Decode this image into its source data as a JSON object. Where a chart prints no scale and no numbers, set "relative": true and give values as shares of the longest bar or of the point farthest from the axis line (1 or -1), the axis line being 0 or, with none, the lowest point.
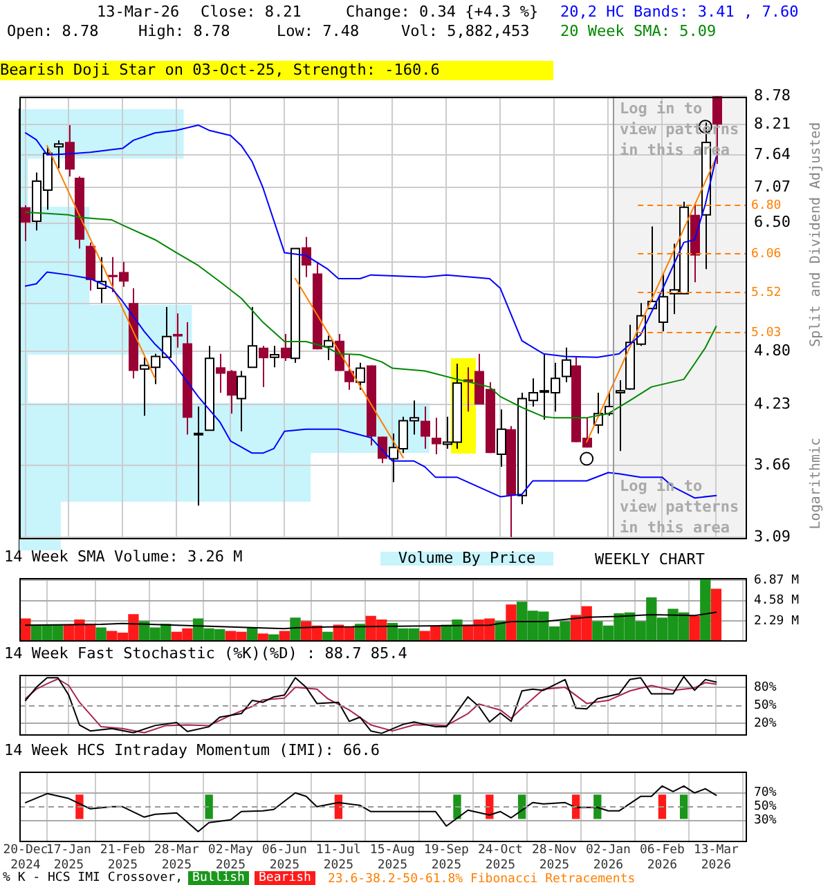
{
  "chart_data": [
    {
      "type": "candlestick",
      "title": "Bearish Doji Star on 03-Oct-25, Strength: -160.6",
      "ylabel": "Split and Dividend Adjusted",
      "annotations": [
        "13-Mar-26",
        "Close: 8.21",
        "Change: 0.34 {+4.3 %}",
        "Open: 8.78",
        "High: 8.78",
        "Low: 7.48",
        "Vol: 5,882,453",
        "20,2 HC Bands: 3.41 , 7.60",
        "20 Week SMA: 5.09",
        "Log in to view patterns in this area",
        "Log in to view patterns in this area",
        "Logarithmic",
        "23.6-38.2-50-61.8% Fibonacci Retracements"
      ],
      "x": [
        "2024-12-20",
        "2024-12-27",
        "2025-01-03",
        "2025-01-10",
        "2025-01-17",
        "2025-01-24",
        "2025-01-31",
        "2025-02-07",
        "2025-02-14",
        "2025-02-21",
        "2025-02-28",
        "2025-03-07",
        "2025-03-14",
        "2025-03-21",
        "2025-03-28",
        "2025-04-04",
        "2025-04-11",
        "2025-04-18",
        "2025-04-25",
        "2025-05-02",
        "2025-05-09",
        "2025-05-16",
        "2025-05-23",
        "2025-05-30",
        "2025-06-06",
        "2025-06-13",
        "2025-06-20",
        "2025-06-27",
        "2025-07-04",
        "2025-07-11",
        "2025-07-18",
        "2025-07-25",
        "2025-08-01",
        "2025-08-08",
        "2025-08-15",
        "2025-08-22",
        "2025-08-29",
        "2025-09-05",
        "2025-09-12",
        "2025-09-19",
        "2025-09-26",
        "2025-10-03",
        "2025-10-10",
        "2025-10-17",
        "2025-10-24",
        "2025-10-31",
        "2025-11-07",
        "2025-11-14",
        "2025-11-21",
        "2025-11-28",
        "2025-12-05",
        "2025-12-12",
        "2025-12-19",
        "2025-12-26",
        "2026-01-02",
        "2026-01-09",
        "2026-01-16",
        "2026-01-23",
        "2026-01-30",
        "2026-02-06",
        "2026-02-13",
        "2026-02-20",
        "2026-02-27",
        "2026-03-06",
        "2026-03-13"
      ],
      "ohlc": [
        [
          6.75,
          6.78,
          6.23,
          6.51
        ],
        [
          6.53,
          7.33,
          6.39,
          7.18
        ],
        [
          7.03,
          7.79,
          6.71,
          7.67
        ],
        [
          7.79,
          7.91,
          7.4,
          7.84
        ],
        [
          7.88,
          8.2,
          7.26,
          7.38
        ],
        [
          7.24,
          7.26,
          6.12,
          6.25
        ],
        [
          6.16,
          6.21,
          5.54,
          5.68
        ],
        [
          5.57,
          6.0,
          5.38,
          5.66
        ],
        [
          5.75,
          6.0,
          5.52,
          5.72
        ],
        [
          5.79,
          5.93,
          5.59,
          5.66
        ],
        [
          5.38,
          5.57,
          4.5,
          4.58
        ],
        [
          4.6,
          4.73,
          4.12,
          4.64
        ],
        [
          4.62,
          4.77,
          4.44,
          4.74
        ],
        [
          4.73,
          5.33,
          4.73,
          4.97
        ],
        [
          5.0,
          5.25,
          4.84,
          4.97
        ],
        [
          4.89,
          5.14,
          3.94,
          4.1
        ],
        [
          3.94,
          4.21,
          3.33,
          3.95
        ],
        [
          3.98,
          4.86,
          3.98,
          4.72
        ],
        [
          4.62,
          4.77,
          4.35,
          4.55
        ],
        [
          4.58,
          4.59,
          4.14,
          4.32
        ],
        [
          4.29,
          4.58,
          3.97,
          4.52
        ],
        [
          4.62,
          5.33,
          4.62,
          4.86
        ],
        [
          4.84,
          4.86,
          4.41,
          4.72
        ],
        [
          4.73,
          4.86,
          4.62,
          4.76
        ],
        [
          4.84,
          5.0,
          4.69,
          4.72
        ],
        [
          4.72,
          6.12,
          4.67,
          6.12
        ],
        [
          6.14,
          6.29,
          5.72,
          5.88
        ],
        [
          5.77,
          5.93,
          4.82,
          4.82
        ],
        [
          4.85,
          4.98,
          4.7,
          4.92
        ],
        [
          4.92,
          5.0,
          4.58,
          4.58
        ],
        [
          4.58,
          4.76,
          4.38,
          4.46
        ],
        [
          4.46,
          4.67,
          4.38,
          4.61
        ],
        [
          4.64,
          4.64,
          3.84,
          3.92
        ],
        [
          3.92,
          3.92,
          3.68,
          3.72
        ],
        [
          3.72,
          3.95,
          3.52,
          3.82
        ],
        [
          3.81,
          4.11,
          3.77,
          4.07
        ],
        [
          4.07,
          4.27,
          3.94,
          4.1
        ],
        [
          4.07,
          4.21,
          3.81,
          3.92
        ],
        [
          3.91,
          4.1,
          3.76,
          3.85
        ],
        [
          3.85,
          4.11,
          3.81,
          3.87
        ],
        [
          3.87,
          4.66,
          3.81,
          4.45
        ],
        [
          4.49,
          4.62,
          4.16,
          4.46
        ],
        [
          4.58,
          4.77,
          4.23,
          4.23
        ],
        [
          4.39,
          4.46,
          3.77,
          3.77
        ],
        [
          3.76,
          4.18,
          3.65,
          3.99
        ],
        [
          3.99,
          4.02,
          3.09,
          3.41
        ],
        [
          3.41,
          4.35,
          3.34,
          4.29
        ],
        [
          4.27,
          4.5,
          4.21,
          4.35
        ],
        [
          4.36,
          4.77,
          4.08,
          4.37
        ],
        [
          4.35,
          4.67,
          4.16,
          4.5
        ],
        [
          4.52,
          4.84,
          4.46,
          4.7
        ],
        [
          4.64,
          4.73,
          3.87,
          3.87
        ],
        [
          3.91,
          4.1,
          3.82,
          3.82
        ],
        [
          4.03,
          4.35,
          3.95,
          4.14
        ],
        [
          4.14,
          4.35,
          4.12,
          4.21
        ],
        [
          4.35,
          4.48,
          3.79,
          4.37
        ],
        [
          4.39,
          5.11,
          4.38,
          4.9
        ],
        [
          4.88,
          5.38,
          4.86,
          5.22
        ],
        [
          5.31,
          6.45,
          5.31,
          5.4
        ],
        [
          5.14,
          5.77,
          5.03,
          5.46
        ],
        [
          5.5,
          6.19,
          5.24,
          5.55
        ],
        [
          5.5,
          6.84,
          5.5,
          6.75
        ],
        [
          6.63,
          6.8,
          5.65,
          6.02
        ],
        [
          6.63,
          8.25,
          5.83,
          7.87
        ],
        [
          8.78,
          8.78,
          7.48,
          8.21
        ]
      ],
      "series": [
        {
          "type": "line",
          "color": "#0000ff",
          "x": [
            "2024-12-20",
            "2024-12-27",
            "2025-01-03",
            "2025-01-17",
            "2025-01-31",
            "2025-02-21",
            "2025-02-28",
            "2025-03-14",
            "2025-03-28",
            "2025-04-11",
            "2025-04-18",
            "2025-05-02",
            "2025-05-09",
            "2025-05-16",
            "2025-05-23",
            "2025-06-06",
            "2025-06-20",
            "2025-07-04",
            "2025-07-11",
            "2025-07-25",
            "2025-08-01",
            "2025-09-05",
            "2025-09-19",
            "2025-10-17",
            "2025-10-24",
            "2025-11-07",
            "2025-11-21",
            "2025-12-05",
            "2025-12-26",
            "2026-01-09",
            "2026-01-23",
            "2026-02-06",
            "2026-02-20",
            "2026-02-27",
            "2026-03-06",
            "2026-03-13"
          ],
          "values": [
            8.05,
            7.92,
            7.64,
            7.66,
            7.69,
            7.76,
            7.91,
            8.05,
            8.1,
            8.2,
            8.1,
            8.0,
            7.81,
            7.52,
            7.07,
            6.06,
            6.02,
            5.83,
            5.7,
            5.7,
            5.75,
            5.72,
            5.75,
            5.7,
            5.57,
            4.92,
            4.77,
            4.74,
            4.73,
            4.77,
            4.99,
            5.55,
            6.21,
            6.25,
            6.8,
            7.6
          ]
        },
        {
          "type": "line",
          "color": "#0000ff",
          "x": [
            "2024-12-20",
            "2024-12-27",
            "2025-01-03",
            "2025-01-17",
            "2025-01-31",
            "2025-02-14",
            "2025-02-21",
            "2025-03-07",
            "2025-03-14",
            "2025-03-21",
            "2025-03-28",
            "2025-04-11",
            "2025-04-25",
            "2025-05-02",
            "2025-05-16",
            "2025-05-23",
            "2025-05-30",
            "2025-06-06",
            "2025-06-20",
            "2025-07-11",
            "2025-08-01",
            "2025-08-15",
            "2025-08-29",
            "2025-09-05",
            "2025-09-12",
            "2025-09-26",
            "2025-10-24",
            "2025-11-07",
            "2025-11-14",
            "2025-12-19",
            "2026-01-02",
            "2026-01-09",
            "2026-01-23",
            "2026-02-06",
            "2026-02-13",
            "2026-02-27",
            "2026-03-13"
          ],
          "values": [
            5.6,
            5.63,
            5.79,
            5.75,
            5.7,
            5.57,
            5.4,
            5.03,
            4.88,
            4.76,
            4.62,
            4.31,
            4.06,
            3.88,
            3.77,
            3.77,
            3.81,
            3.97,
            3.99,
            3.99,
            3.91,
            3.7,
            3.7,
            3.65,
            3.56,
            3.56,
            3.4,
            3.42,
            3.53,
            3.53,
            3.6,
            3.59,
            3.56,
            3.56,
            3.48,
            3.39,
            3.41
          ]
        },
        {
          "type": "line",
          "color": "#008800",
          "x": [
            "2024-12-20",
            "2025-01-03",
            "2025-01-17",
            "2025-01-24",
            "2025-02-14",
            "2025-02-21",
            "2025-03-14",
            "2025-03-28",
            "2025-04-11",
            "2025-04-25",
            "2025-05-09",
            "2025-05-23",
            "2025-06-06",
            "2025-06-20",
            "2025-07-04",
            "2025-07-11",
            "2025-07-25",
            "2025-08-08",
            "2025-08-15",
            "2025-09-05",
            "2025-09-12",
            "2025-09-26",
            "2025-10-17",
            "2025-10-24",
            "2025-11-07",
            "2025-11-21",
            "2025-11-28",
            "2025-12-19",
            "2026-01-02",
            "2026-01-16",
            "2026-01-30",
            "2026-02-20",
            "2026-02-27",
            "2026-03-06",
            "2026-03-13"
          ],
          "values": [
            6.67,
            6.65,
            6.63,
            6.59,
            6.55,
            6.47,
            6.25,
            6.06,
            5.88,
            5.66,
            5.44,
            5.14,
            4.91,
            4.91,
            4.84,
            4.77,
            4.76,
            4.68,
            4.61,
            4.58,
            4.55,
            4.49,
            4.41,
            4.31,
            4.2,
            4.11,
            4.1,
            4.1,
            4.14,
            4.27,
            4.41,
            4.49,
            4.66,
            4.84,
            5.09
          ]
        },
        {
          "type": "line",
          "color": "#ff7f00",
          "x": [
            "2025-01-03",
            "2025-03-14"
          ],
          "values": [
            7.81,
            4.5
          ]
        },
        {
          "type": "line",
          "color": "#ff7f00",
          "x": [
            "2025-06-13",
            "2025-08-22"
          ],
          "values": [
            5.7,
            3.73
          ]
        },
        {
          "type": "line",
          "color": "#ff7f00",
          "x": [
            "2025-12-19",
            "2026-03-13"
          ],
          "values": [
            3.87,
            7.59
          ]
        },
        {
          "type": "scatter",
          "marker": "circle",
          "color": "#000000",
          "x": [
            "2025-12-19",
            "2026-03-06"
          ],
          "values": [
            3.72,
            8.17
          ]
        }
      ],
      "xlim": [
        "2024-12-16",
        "2026-04-02"
      ],
      "xticks": [
        {
          "value": "2024-12-20",
          "label": null
        },
        {
          "value": "2025-01-17",
          "label": null
        },
        {
          "value": "2025-02-21",
          "label": null
        },
        {
          "value": "2025-03-28",
          "label": null
        },
        {
          "value": "2025-05-02",
          "label": null
        },
        {
          "value": "2025-06-06",
          "label": null
        },
        {
          "value": "2025-07-11",
          "label": null
        },
        {
          "value": "2025-08-15",
          "label": null
        },
        {
          "value": "2025-09-19",
          "label": null
        },
        {
          "value": "2025-10-24",
          "label": null
        },
        {
          "value": "2025-11-28",
          "label": null
        },
        {
          "value": "2026-01-02",
          "label": null
        },
        {
          "value": "2026-02-06",
          "label": null
        },
        {
          "value": "2026-03-13",
          "label": null
        }
      ],
      "ylim": [
        3.09,
        8.78
      ],
      "yticks": [
        3.09,
        3.66,
        4.23,
        {
          "value": 4.8,
          "label": "4.80"
        },
        {
          "value": 5.37,
          "label": null
        },
        {
          "value": 5.93,
          "label": null
        },
        {
          "value": 6.5,
          "label": "6.50"
        },
        7.07,
        7.64,
        8.21,
        8.78
      ],
      "log": "y",
      "grid": true,
      "tick_labels": "y",
      "bands": [
        {
          "axis": "x",
          "from": "2026-01-05",
          "to": "2026-04-02",
          "color": "#f2f2f2"
        }
      ],
      "ref_lines": [
        {
          "axis": "x",
          "value": "2026-01-05",
          "color": "#999999"
        },
        {
          "axis": "y",
          "value": 6.8,
          "label": "6.80",
          "color": "#ff7f00",
          "line_style": "dashed"
        },
        {
          "axis": "y",
          "value": 6.06,
          "label": "6.06",
          "color": "#ff7f00",
          "line_style": "dashed"
        },
        {
          "axis": "y",
          "value": 5.52,
          "label": "5.52",
          "color": "#ff7f00",
          "line_style": "dashed"
        },
        {
          "axis": "y",
          "value": 5.03,
          "label": "5.03",
          "color": "#ff7f00",
          "line_style": "dashed"
        }
      ]
    },
    {
      "type": "bar",
      "title": "14 Week SMA Volume: 3.26 M",
      "annotations": [
        "WEEKLY CHART"
      ],
      "x": [
        "2024-12-20",
        "2024-12-27",
        "2025-01-03",
        "2025-01-10",
        "2025-01-17",
        "2025-01-24",
        "2025-01-31",
        "2025-02-07",
        "2025-02-14",
        "2025-02-21",
        "2025-02-28",
        "2025-03-07",
        "2025-03-14",
        "2025-03-21",
        "2025-03-28",
        "2025-04-04",
        "2025-04-11",
        "2025-04-18",
        "2025-04-25",
        "2025-05-02",
        "2025-05-09",
        "2025-05-16",
        "2025-05-23",
        "2025-05-30",
        "2025-06-06",
        "2025-06-13",
        "2025-06-20",
        "2025-06-27",
        "2025-07-04",
        "2025-07-11",
        "2025-07-18",
        "2025-07-25",
        "2025-08-01",
        "2025-08-08",
        "2025-08-15",
        "2025-08-22",
        "2025-08-29",
        "2025-09-05",
        "2025-09-12",
        "2025-09-19",
        "2025-09-26",
        "2025-10-03",
        "2025-10-10",
        "2025-10-17",
        "2025-10-24",
        "2025-10-31",
        "2025-11-07",
        "2025-11-14",
        "2025-11-21",
        "2025-11-28",
        "2025-12-05",
        "2025-12-12",
        "2025-12-19",
        "2025-12-26",
        "2026-01-02",
        "2026-01-09",
        "2026-01-16",
        "2026-01-23",
        "2026-01-30",
        "2026-02-06",
        "2026-02-13",
        "2026-02-20",
        "2026-02-27",
        "2026-03-06",
        "2026-03-13"
      ],
      "values": [
        2.5,
        1.8,
        1.8,
        1.8,
        1.8,
        2.4,
        1.9,
        1.5,
        1.1,
        0.9,
        3.0,
        2.2,
        1.5,
        1.9,
        1.0,
        1.4,
        2.5,
        1.4,
        1.3,
        1.1,
        1.0,
        1.5,
        0.8,
        0.7,
        1.1,
        2.6,
        2.2,
        1.7,
        1.0,
        1.8,
        1.6,
        1.9,
        2.8,
        2.4,
        2.0,
        1.4,
        1.4,
        1.1,
        1.6,
        1.8,
        2.4,
        1.8,
        2.4,
        2.5,
        2.2,
        4.1,
        4.4,
        3.4,
        3.3,
        1.6,
        2.2,
        2.9,
        3.9,
        2.2,
        1.7,
        3.1,
        3.2,
        2.2,
        4.9,
        2.6,
        3.6,
        3.2,
        2.8,
        7.0,
        5.88
      ],
      "colors": [
        "#ff1a1a",
        "#1a961a",
        "#1a961a",
        "#1a961a",
        "#ff1a1a",
        "#ff1a1a",
        "#ff1a1a",
        "#1a961a",
        "#ff1a1a",
        "#ff1a1a",
        "#ff1a1a",
        "#1a961a",
        "#1a961a",
        "#1a961a",
        "#ff1a1a",
        "#ff1a1a",
        "#1a961a",
        "#1a961a",
        "#1a961a",
        "#ff1a1a",
        "#ff1a1a",
        "#1a961a",
        "#ff1a1a",
        "#1a961a",
        "#ff1a1a",
        "#1a961a",
        "#ff1a1a",
        "#ff1a1a",
        "#1a961a",
        "#ff1a1a",
        "#ff1a1a",
        "#1a961a",
        "#ff1a1a",
        "#ff1a1a",
        "#1a961a",
        "#1a961a",
        "#1a961a",
        "#ff1a1a",
        "#ff1a1a",
        "#1a961a",
        "#1a961a",
        "#ff1a1a",
        "#ff1a1a",
        "#ff1a1a",
        "#1a961a",
        "#ff1a1a",
        "#1a961a",
        "#1a961a",
        "#1a961a",
        "#1a961a",
        "#1a961a",
        "#ff1a1a",
        "#ff1a1a",
        "#1a961a",
        "#1a961a",
        "#1a961a",
        "#1a961a",
        "#1a961a",
        "#1a961a",
        "#1a961a",
        "#1a961a",
        "#1a961a",
        "#ff1a1a",
        "#1a961a",
        "#ff1a1a"
      ],
      "series": [
        {
          "type": "line",
          "color": "#000000",
          "x": [
            "2024-12-20",
            "2025-02-07",
            "2025-02-21",
            "2025-03-28",
            "2025-06-06",
            "2025-06-13",
            "2025-07-04",
            "2025-10-17",
            "2025-10-31",
            "2025-11-21",
            "2025-12-19",
            "2026-01-09",
            "2026-01-30",
            "2026-02-27",
            "2026-03-13"
          ],
          "values": [
            1.8,
            1.9,
            2.0,
            1.8,
            1.4,
            1.5,
            1.6,
            1.8,
            2.2,
            2.2,
            2.7,
            2.8,
            3.0,
            2.9,
            3.26
          ]
        }
      ],
      "xlim": [
        "2024-12-16",
        "2026-04-02"
      ],
      "xticks": [
        {
          "value": "2024-12-20",
          "label": null
        },
        {
          "value": "2025-01-17",
          "label": null
        },
        {
          "value": "2025-02-21",
          "label": null
        },
        {
          "value": "2025-03-28",
          "label": null
        },
        {
          "value": "2025-05-02",
          "label": null
        },
        {
          "value": "2025-06-06",
          "label": null
        },
        {
          "value": "2025-07-11",
          "label": null
        },
        {
          "value": "2025-08-15",
          "label": null
        },
        {
          "value": "2025-09-19",
          "label": null
        },
        {
          "value": "2025-10-24",
          "label": null
        },
        {
          "value": "2025-11-28",
          "label": null
        },
        {
          "value": "2026-01-02",
          "label": null
        },
        {
          "value": "2026-02-06",
          "label": null
        },
        {
          "value": "2026-03-13",
          "label": null
        }
      ],
      "ylim": [
        0,
        7.08
      ],
      "yticks": [
        {
          "value": 2.29,
          "label": "2.29 M"
        },
        {
          "value": 4.58,
          "label": "4.58 M"
        },
        {
          "value": 6.87,
          "label": "6.87 M"
        }
      ],
      "grid": true,
      "tick_labels": "y"
    },
    {
      "type": "line",
      "title": "14 Week Fast Stochastic (%K)(%D) : 88.7 85.4",
      "series": [
        {
          "color": "#000000",
          "x": [
            "2024-12-20",
            "2024-12-27",
            "2025-01-03",
            "2025-01-10",
            "2025-01-17",
            "2025-01-24",
            "2025-01-31",
            "2025-02-14",
            "2025-02-28",
            "2025-03-14",
            "2025-03-28",
            "2025-04-04",
            "2025-04-18",
            "2025-04-25",
            "2025-05-09",
            "2025-05-16",
            "2025-05-23",
            "2025-05-30",
            "2025-06-06",
            "2025-06-13",
            "2025-06-20",
            "2025-06-27",
            "2025-07-11",
            "2025-07-18",
            "2025-07-25",
            "2025-08-01",
            "2025-08-08",
            "2025-08-22",
            "2025-08-29",
            "2025-09-12",
            "2025-09-19",
            "2025-10-03",
            "2025-10-10",
            "2025-10-17",
            "2025-10-24",
            "2025-10-31",
            "2025-11-07",
            "2025-11-14",
            "2025-11-21",
            "2025-12-05",
            "2025-12-12",
            "2025-12-19",
            "2025-12-26",
            "2026-01-09",
            "2026-01-16",
            "2026-01-23",
            "2026-01-30",
            "2026-02-13",
            "2026-02-20",
            "2026-02-27",
            "2026-03-06",
            "2026-03-13"
          ],
          "values": [
            58,
            80,
            96,
            96,
            67,
            17,
            7,
            11,
            4,
            16,
            21,
            6,
            14,
            30,
            36,
            58,
            55,
            64,
            67,
            96,
            80,
            53,
            55,
            23,
            30,
            7,
            3,
            18,
            22,
            14,
            14,
            64,
            48,
            22,
            37,
            23,
            74,
            77,
            75,
            93,
            45,
            44,
            61,
            69,
            93,
            96,
            69,
            69,
            98,
            75,
            93,
            88.7
          ]
        },
        {
          "color": "#aa2255",
          "x": [
            "2024-12-20",
            "2024-12-27",
            "2025-01-03",
            "2025-01-10",
            "2025-01-17",
            "2025-01-24",
            "2025-02-07",
            "2025-02-21",
            "2025-03-07",
            "2025-03-21",
            "2025-04-04",
            "2025-04-18",
            "2025-05-02",
            "2025-05-16",
            "2025-05-23",
            "2025-06-06",
            "2025-06-13",
            "2025-06-27",
            "2025-07-04",
            "2025-07-18",
            "2025-08-01",
            "2025-08-15",
            "2025-08-29",
            "2025-09-12",
            "2025-09-19",
            "2025-10-03",
            "2025-10-10",
            "2025-10-24",
            "2025-10-31",
            "2025-11-07",
            "2025-11-21",
            "2025-12-05",
            "2025-12-19",
            "2026-01-02",
            "2026-01-16",
            "2026-01-30",
            "2026-02-13",
            "2026-02-27",
            "2026-03-06",
            "2026-03-13"
          ],
          "values": [
            61,
            77,
            86,
            94,
            83,
            55,
            14,
            11,
            4,
            16,
            17,
            16,
            33,
            48,
            59,
            62,
            80,
            77,
            61,
            42,
            17,
            7,
            17,
            17,
            16,
            36,
            52,
            42,
            28,
            45,
            77,
            80,
            53,
            58,
            74,
            83,
            75,
            79,
            88,
            85.4
          ]
        }
      ],
      "xlim": [
        "2024-12-16",
        "2026-04-02"
      ],
      "xticks": [
        {
          "value": "2024-12-20",
          "label": null
        },
        {
          "value": "2025-01-17",
          "label": null
        },
        {
          "value": "2025-02-21",
          "label": null
        },
        {
          "value": "2025-03-28",
          "label": null
        },
        {
          "value": "2025-05-02",
          "label": null
        },
        {
          "value": "2025-06-06",
          "label": null
        },
        {
          "value": "2025-07-11",
          "label": null
        },
        {
          "value": "2025-08-15",
          "label": null
        },
        {
          "value": "2025-09-19",
          "label": null
        },
        {
          "value": "2025-10-24",
          "label": null
        },
        {
          "value": "2025-11-28",
          "label": null
        },
        {
          "value": "2026-01-02",
          "label": null
        },
        {
          "value": "2026-02-06",
          "label": null
        },
        {
          "value": "2026-03-13",
          "label": null
        }
      ],
      "ylim": [
        0,
        100
      ],
      "yticks": [
        {
          "value": 20,
          "label": "20%"
        },
        {
          "value": 50,
          "label": "50%"
        },
        {
          "value": 80,
          "label": "80%"
        }
      ],
      "grid": true,
      "tick_labels": "y",
      "ref_lines": [
        {
          "axis": "y",
          "value": 50,
          "color": "#999999",
          "line_style": "dashed"
        }
      ]
    },
    {
      "type": "line",
      "title": "14 Week HCS Intraday Momentum (IMI): 66.6",
      "series": [
        {
          "color": "#000000",
          "x": [
            "2024-12-20",
            "2025-01-03",
            "2025-01-17",
            "2025-01-31",
            "2025-02-14",
            "2025-02-21",
            "2025-03-07",
            "2025-03-14",
            "2025-03-28",
            "2025-04-11",
            "2025-04-18",
            "2025-05-02",
            "2025-05-09",
            "2025-05-23",
            "2025-05-30",
            "2025-06-13",
            "2025-06-20",
            "2025-06-27",
            "2025-07-11",
            "2025-07-25",
            "2025-08-01",
            "2025-08-15",
            "2025-09-05",
            "2025-09-12",
            "2025-09-19",
            "2025-10-03",
            "2025-10-17",
            "2025-10-24",
            "2025-10-31",
            "2025-11-14",
            "2025-11-21",
            "2025-12-05",
            "2025-12-12",
            "2025-12-26",
            "2026-01-02",
            "2026-01-09",
            "2026-01-23",
            "2026-01-30",
            "2026-02-06",
            "2026-02-13",
            "2026-02-20",
            "2026-02-27",
            "2026-03-06",
            "2026-03-13"
          ],
          "values": [
            56,
            69,
            62,
            47,
            50,
            50,
            35,
            39,
            41,
            14,
            27,
            31,
            43,
            44,
            46,
            70,
            65,
            50,
            56,
            52,
            43,
            43,
            43,
            43,
            22,
            45,
            38,
            43,
            34,
            56,
            54,
            56,
            49,
            49,
            44,
            44,
            65,
            65,
            80,
            72,
            80,
            70,
            76,
            66.6
          ]
        },
        {
          "type": "bar",
          "name": "Bullish",
          "color": "#1a961a",
          "x": [
            "2025-04-18",
            "2025-09-26",
            "2025-11-07",
            "2025-12-26",
            "2026-02-20"
          ],
          "base": [
            33,
            33,
            33,
            33,
            33
          ],
          "values": [
            34,
            34,
            34,
            34,
            34
          ]
        },
        {
          "type": "bar",
          "name": "Bearish",
          "color": "#ff1a1a",
          "x": [
            "2025-01-24",
            "2025-07-11",
            "2025-10-17",
            "2025-12-12",
            "2026-02-06"
          ],
          "base": [
            33,
            33,
            33,
            33,
            33
          ],
          "values": [
            34,
            34,
            34,
            34,
            34
          ]
        }
      ],
      "xlim": [
        "2024-12-16",
        "2026-04-02"
      ],
      "xticks": [
        {
          "value": "2024-12-20",
          "label": "20-Dec 2024"
        },
        {
          "value": "2025-01-17",
          "label": "17-Jan 2025"
        },
        {
          "value": "2025-02-21",
          "label": "21-Feb 2025"
        },
        {
          "value": "2025-03-28",
          "label": "28-Mar 2025"
        },
        {
          "value": "2025-05-02",
          "label": "02-May 2025"
        },
        {
          "value": "2025-06-06",
          "label": "06-Jun 2025"
        },
        {
          "value": "2025-07-11",
          "label": "11-Jul 2025"
        },
        {
          "value": "2025-08-15",
          "label": "15-Aug 2025"
        },
        {
          "value": "2025-09-19",
          "label": "19-Sep 2025"
        },
        {
          "value": "2025-10-24",
          "label": "24-Oct 2025"
        },
        {
          "value": "2025-11-28",
          "label": "28-Nov 2025"
        },
        {
          "value": "2026-01-02",
          "label": "02-Jan 2026"
        },
        {
          "value": "2026-02-06",
          "label": "06-Feb 2026"
        },
        {
          "value": "2026-03-13",
          "label": "13-Mar 2026"
        }
      ],
      "ylim": [
        0,
        100
      ],
      "yticks": [
        {
          "value": 30,
          "label": "30%"
        },
        {
          "value": 50,
          "label": "50%"
        },
        {
          "value": 70,
          "label": "70%"
        }
      ],
      "grid": true,
      "legend": "bottom",
      "legend_title": "% K - HCS IMI Crossover,",
      "ref_lines": [
        {
          "axis": "y",
          "value": 50,
          "color": "#999999",
          "line_style": "dashed"
        }
      ]
    },
    {
      "type": "bar",
      "orientation": "horizontal",
      "relative": true,
      "categories": [
        null,
        null,
        null,
        null,
        null,
        null,
        null,
        null,
        null
      ],
      "series": [
        {
          "name": "Volume By Price",
          "color": "#c8f4fc",
          "values": [
            0.4,
            0.02,
            0.17,
            0.17,
            0.42,
            0.02,
            1,
            0.71,
            0.1
          ]
        }
      ],
      "legend": "bottom"
    }
  ]
}
